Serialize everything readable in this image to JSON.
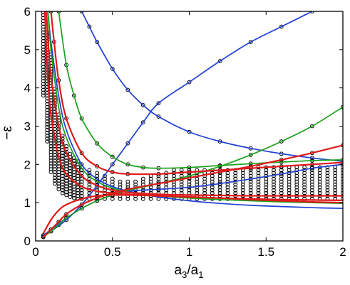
{
  "chart_data": {
    "type": "line",
    "title": "",
    "xlabel": {
      "base1": "a",
      "sub1": "3",
      "sep": "/a",
      "sub2": "1"
    },
    "ylabel": "−ε",
    "xlim": [
      0,
      2
    ],
    "ylim": [
      0,
      6
    ],
    "x_ticks": [
      "0",
      "0.5",
      "1",
      "1.5",
      "2"
    ],
    "x_tick_values": [
      0,
      0.5,
      1,
      1.5,
      2
    ],
    "y_ticks": [
      "0",
      "1",
      "2",
      "3",
      "4",
      "5",
      "6"
    ],
    "y_tick_values": [
      0,
      1,
      2,
      3,
      4,
      5,
      6
    ],
    "grid": false,
    "legend": "none",
    "series_colors": {
      "blue": "#1f3fd6",
      "green": "#1aa11a",
      "red": "#e01919",
      "markers": "#000000"
    },
    "series": [
      {
        "color": "blue",
        "x": [
          0.05,
          0.1,
          0.2,
          0.3,
          0.4,
          0.5,
          0.6,
          0.7,
          0.8,
          1.0,
          1.2,
          1.4,
          1.6,
          1.8
        ],
        "y": [
          0.12,
          0.25,
          0.55,
          0.95,
          1.45,
          2.0,
          2.55,
          3.1,
          3.6,
          4.15,
          4.7,
          5.2,
          5.6,
          6.0
        ],
        "markers": true
      },
      {
        "color": "blue",
        "x": [
          0.3,
          0.35,
          0.4,
          0.5,
          0.6,
          0.7,
          0.8,
          1.0,
          1.2,
          1.4,
          1.6,
          1.8,
          2.0
        ],
        "y": [
          6.0,
          5.6,
          5.2,
          4.5,
          3.95,
          3.55,
          3.25,
          2.85,
          2.6,
          2.42,
          2.28,
          2.17,
          2.08
        ],
        "markers": true
      },
      {
        "color": "blue",
        "x": [
          0.05,
          0.1,
          0.15,
          0.2,
          0.3,
          0.4,
          0.5,
          0.6,
          0.8,
          1.0,
          1.2,
          1.4,
          1.6,
          1.8,
          2.0
        ],
        "y": [
          0.15,
          0.3,
          0.45,
          0.6,
          0.85,
          1.05,
          1.2,
          1.3,
          1.35,
          1.4,
          1.5,
          1.62,
          1.75,
          1.9,
          2.0
        ],
        "markers": true
      },
      {
        "color": "blue",
        "x": [
          0.08,
          0.1,
          0.15,
          0.2,
          0.3,
          0.4,
          0.5,
          0.6,
          0.8,
          1.0,
          1.2,
          1.4,
          1.6,
          1.8,
          2.0
        ],
        "y": [
          6.0,
          5.2,
          3.8,
          2.9,
          2.0,
          1.62,
          1.42,
          1.3,
          1.15,
          1.05,
          0.98,
          0.93,
          0.9,
          0.87,
          0.85
        ],
        "markers": false
      },
      {
        "color": "green",
        "x": [
          0.05,
          0.1,
          0.15,
          0.2,
          0.3,
          0.4,
          0.5,
          0.6,
          0.8,
          1.0,
          1.2,
          1.4,
          1.6,
          1.8,
          2.0
        ],
        "y": [
          0.1,
          0.25,
          0.42,
          0.6,
          0.85,
          1.05,
          1.2,
          1.32,
          1.5,
          1.7,
          1.95,
          2.25,
          2.6,
          3.0,
          3.5
        ],
        "markers": true
      },
      {
        "color": "green",
        "x": [
          0.15,
          0.2,
          0.25,
          0.3,
          0.4,
          0.5,
          0.6,
          0.7,
          0.8,
          1.0,
          1.2,
          1.4,
          1.6,
          1.8,
          2.0
        ],
        "y": [
          6.0,
          4.6,
          3.8,
          3.2,
          2.55,
          2.2,
          2.0,
          1.92,
          1.9,
          1.92,
          1.97,
          2.02,
          2.06,
          2.1,
          2.12
        ],
        "markers": true
      },
      {
        "color": "green",
        "x": [
          0.08,
          0.1,
          0.15,
          0.2,
          0.3,
          0.4,
          0.5,
          0.6,
          0.8,
          1.0,
          1.2,
          1.4,
          1.6,
          1.8,
          2.0
        ],
        "y": [
          6.0,
          5.0,
          3.5,
          2.7,
          1.9,
          1.55,
          1.38,
          1.28,
          1.18,
          1.12,
          1.08,
          1.05,
          1.02,
          1.0,
          0.98
        ],
        "markers": false
      },
      {
        "color": "red",
        "x": [
          0.05,
          0.1,
          0.15,
          0.2,
          0.3,
          0.4,
          0.5,
          0.6,
          0.8,
          1.0,
          1.2,
          1.4,
          1.6,
          1.8,
          2.0
        ],
        "y": [
          0.1,
          0.3,
          0.5,
          0.7,
          0.95,
          1.12,
          1.25,
          1.35,
          1.5,
          1.65,
          1.8,
          1.95,
          2.12,
          2.3,
          2.5
        ],
        "markers": true
      },
      {
        "color": "red",
        "x": [
          0.1,
          0.12,
          0.15,
          0.2,
          0.3,
          0.4,
          0.5,
          0.6,
          0.8,
          1.0,
          1.2,
          1.4,
          1.6,
          1.8,
          2.0
        ],
        "y": [
          6.0,
          5.2,
          4.2,
          3.2,
          2.3,
          1.95,
          1.8,
          1.75,
          1.75,
          1.8,
          1.85,
          1.9,
          1.95,
          2.0,
          2.05
        ],
        "markers": true
      },
      {
        "color": "red",
        "x": [
          0.07,
          0.08,
          0.1,
          0.15,
          0.2,
          0.3,
          0.4,
          0.5,
          0.6,
          0.8,
          1.0,
          1.2,
          1.4,
          1.6,
          1.8,
          2.0
        ],
        "y": [
          6.0,
          5.3,
          4.3,
          3.0,
          2.3,
          1.7,
          1.45,
          1.33,
          1.27,
          1.22,
          1.2,
          1.19,
          1.18,
          1.18,
          1.18,
          1.18
        ],
        "markers": false
      },
      {
        "color": "red",
        "x": [
          0.06,
          0.07,
          0.08,
          0.1,
          0.15,
          0.2,
          0.3,
          0.4,
          0.5,
          0.6,
          0.8,
          1.0,
          1.2,
          1.4,
          1.6,
          1.8,
          2.0
        ],
        "y": [
          6.0,
          5.0,
          4.2,
          3.3,
          2.2,
          1.75,
          1.42,
          1.3,
          1.25,
          1.22,
          1.18,
          1.15,
          1.12,
          1.1,
          1.08,
          1.07,
          1.06
        ],
        "markers": false
      },
      {
        "color": "red",
        "x": [
          0.05,
          0.1,
          0.15,
          0.2,
          0.3,
          0.4,
          0.5,
          0.6,
          0.8,
          1.0,
          1.2,
          1.4,
          1.6,
          1.8,
          2.0
        ],
        "y": [
          0.2,
          0.55,
          0.8,
          0.95,
          1.1,
          1.18,
          1.2,
          1.2,
          1.18,
          1.15,
          1.12,
          1.08,
          1.05,
          1.02,
          1.0
        ],
        "markers": false
      }
    ],
    "marker_clusters": {
      "x": [
        0.05,
        0.075,
        0.1,
        0.125,
        0.15,
        0.175,
        0.2,
        0.225,
        0.25,
        0.275,
        0.3,
        0.35,
        0.4,
        0.45,
        0.5,
        0.55,
        0.6,
        0.65,
        0.7,
        0.75,
        0.8,
        0.85,
        0.9,
        0.95,
        1.0,
        1.05,
        1.1,
        1.15,
        1.2,
        1.25,
        1.3,
        1.35,
        1.4,
        1.45,
        1.5,
        1.55,
        1.6,
        1.65,
        1.7,
        1.75,
        1.8,
        1.85,
        1.9,
        1.95,
        2.0
      ],
      "y_low": [
        3.8,
        2.6,
        1.8,
        1.5,
        1.35,
        1.25,
        1.2,
        1.15,
        1.12,
        1.1,
        1.1,
        1.1,
        1.1,
        1.1,
        1.1,
        1.1,
        1.1,
        1.1,
        1.1,
        1.1,
        1.1,
        1.1,
        1.1,
        1.1,
        1.1,
        1.1,
        1.1,
        1.1,
        1.1,
        1.1,
        1.1,
        1.1,
        1.1,
        1.1,
        1.1,
        1.1,
        1.1,
        1.1,
        1.1,
        1.1,
        1.1,
        1.1,
        1.1,
        1.1,
        1.1
      ],
      "y_high": [
        6.0,
        5.5,
        5.0,
        4.0,
        3.3,
        2.8,
        2.5,
        2.3,
        2.2,
        2.1,
        2.0,
        1.9,
        1.8,
        1.7,
        1.65,
        1.6,
        1.6,
        1.6,
        1.65,
        1.7,
        1.75,
        1.8,
        1.85,
        1.85,
        1.85,
        1.85,
        1.85,
        1.85,
        1.9,
        1.9,
        1.9,
        1.9,
        1.95,
        1.95,
        1.95,
        1.95,
        1.95,
        1.95,
        1.95,
        1.95,
        1.95,
        1.95,
        1.95,
        1.95,
        1.95
      ],
      "step": 0.075
    }
  }
}
